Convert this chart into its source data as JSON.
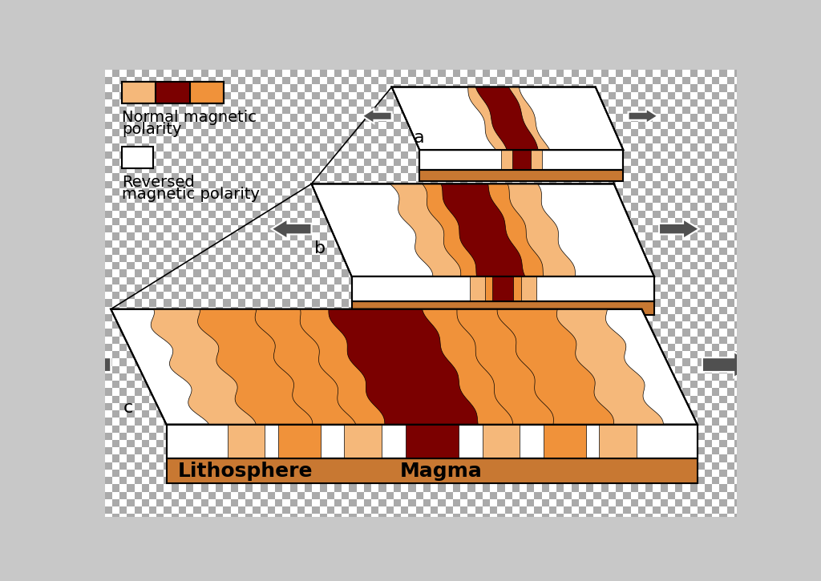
{
  "bg_color": "#c8c8c8",
  "colors": {
    "orange_normal": "#F0923A",
    "orange_light": "#F5B87A",
    "dark_red": "#7B0000",
    "dark_red2": "#9B1010",
    "magma_pink": "#FFB0B0",
    "magma_bright": "#FF8080",
    "lithosphere": "#C87832",
    "white": "#FFFFFF",
    "black": "#000000",
    "arrow_gray": "#505050",
    "checker_light": "#FFFFFF",
    "checker_dark": "#AAAAAA"
  },
  "text": {
    "a": "a",
    "b": "b",
    "c": "c",
    "normal_label1": "Normal magnetic",
    "normal_label2": "polarity",
    "reversed_label1": "Reversed",
    "reversed_label2": "magnetic polarity",
    "lithosphere": "Lithosphere",
    "magma": "Magma"
  },
  "font_sizes": {
    "label": 14,
    "abc": 16,
    "litho_magma": 18
  }
}
